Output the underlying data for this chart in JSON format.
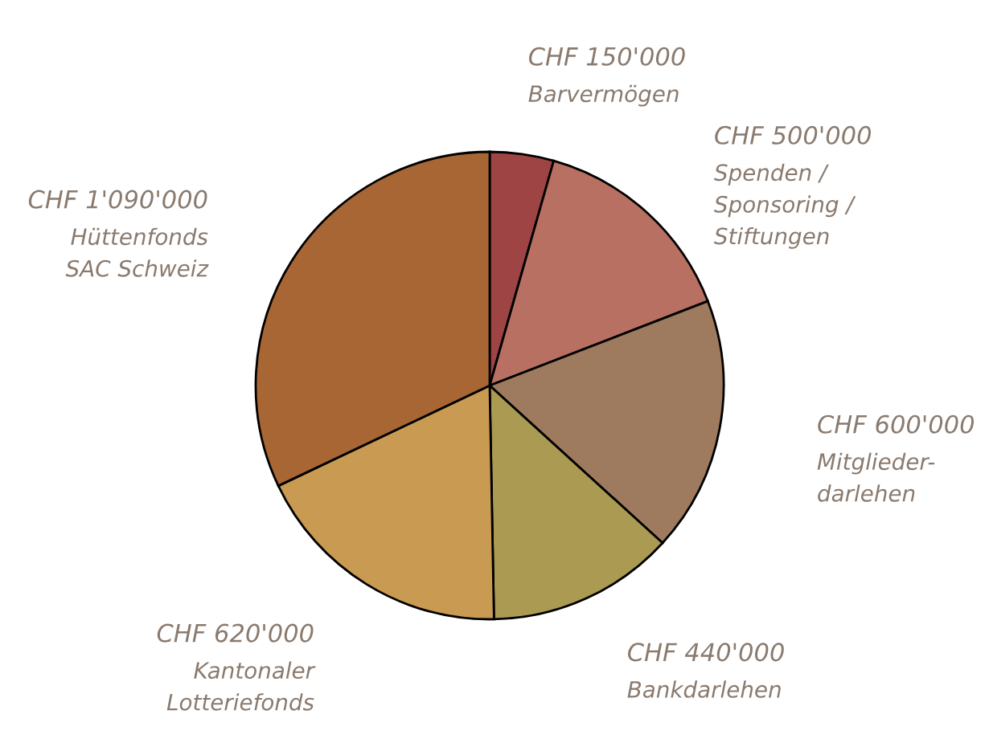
{
  "chart_data": {
    "type": "pie",
    "categories": [
      "Barvermögen",
      "Spenden /\nSponsoring /\nStiftungen",
      "Mitglieder-\ndarlehen",
      "Bankdarlehen",
      "Kantonaler\nLotteriefonds",
      "Hüttenfonds\nSAC Schweiz"
    ],
    "values": [
      150000,
      500000,
      600000,
      440000,
      620000,
      1090000
    ],
    "value_labels": [
      "CHF 150'000",
      "CHF 500'000",
      "CHF 600'000",
      "CHF 440'000",
      "CHF 620'000",
      "CHF 1'090'000"
    ],
    "colors": [
      "#9e4444",
      "#b87062",
      "#9e7a5e",
      "#ab9a52",
      "#c89a52",
      "#a86634"
    ],
    "legend": false
  }
}
